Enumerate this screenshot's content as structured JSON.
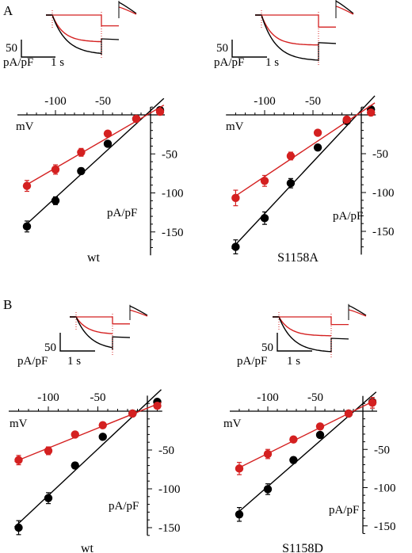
{
  "panels": [
    {
      "label": "A"
    },
    {
      "label": "B"
    }
  ],
  "scale_bar": {
    "value_label": "50",
    "unit_label": "pA/pF",
    "time_label": "1 s"
  },
  "colors": {
    "black_series": "#000000",
    "red_series": "#d42020"
  },
  "chart_data": [
    {
      "type": "scatter",
      "panel": "A",
      "name": "wt",
      "xlabel": "mV",
      "ylabel": "pA/pF",
      "xticks": [
        -100,
        -50
      ],
      "yticks": [
        -50,
        -100,
        -150
      ],
      "xlim": [
        -140,
        15
      ],
      "ylim": [
        -180,
        10
      ],
      "series": [
        {
          "color": "black",
          "x": [
            -130,
            -100,
            -73,
            -45,
            -15,
            10
          ],
          "y": [
            -143,
            -110,
            -72,
            -37,
            -5,
            6
          ],
          "err": [
            7,
            5,
            4,
            3,
            2,
            2
          ]
        },
        {
          "color": "red",
          "x": [
            -130,
            -100,
            -73,
            -45,
            -15,
            10
          ],
          "y": [
            -91,
            -70,
            -48,
            -24,
            -5,
            4
          ],
          "err": [
            7,
            6,
            5,
            3,
            2,
            2
          ]
        }
      ]
    },
    {
      "type": "scatter",
      "panel": "A",
      "name": "S1158A",
      "xlabel": "mV",
      "ylabel": "pA/pF",
      "xticks": [
        -100,
        -50
      ],
      "yticks": [
        -50,
        -100,
        -150
      ],
      "xlim": [
        -140,
        15
      ],
      "ylim": [
        -180,
        10
      ],
      "series": [
        {
          "color": "black",
          "x": [
            -130,
            -100,
            -73,
            -45,
            -15,
            10
          ],
          "y": [
            -170,
            -133,
            -88,
            -42,
            -8,
            7
          ],
          "err": [
            9,
            8,
            6,
            3,
            2,
            2
          ]
        },
        {
          "color": "red",
          "x": [
            -130,
            -100,
            -73,
            -45,
            -15,
            10
          ],
          "y": [
            -107,
            -85,
            -53,
            -23,
            -6,
            3
          ],
          "err": [
            10,
            7,
            5,
            3,
            2,
            2
          ]
        }
      ]
    },
    {
      "type": "scatter",
      "panel": "B",
      "name": "wt",
      "xlabel": "mV",
      "ylabel": "pA/pF",
      "xticks": [
        -100,
        -50
      ],
      "yticks": [
        -50,
        -100,
        -150
      ],
      "xlim": [
        -140,
        15
      ],
      "ylim": [
        -160,
        20
      ],
      "series": [
        {
          "color": "black",
          "x": [
            -130,
            -100,
            -73,
            -45,
            -15,
            10
          ],
          "y": [
            -150,
            -112,
            -70,
            -33,
            -3,
            12
          ],
          "err": [
            9,
            7,
            4,
            3,
            2,
            2
          ]
        },
        {
          "color": "red",
          "x": [
            -130,
            -100,
            -73,
            -45,
            -15,
            10
          ],
          "y": [
            -63,
            -51,
            -30,
            -18,
            -3,
            7
          ],
          "err": [
            6,
            5,
            3,
            2,
            2,
            2
          ]
        }
      ]
    },
    {
      "type": "scatter",
      "panel": "B",
      "name": "S1158D",
      "xlabel": "mV",
      "ylabel": "pA/pF",
      "xticks": [
        -100,
        -50
      ],
      "yticks": [
        -50,
        -100,
        -150
      ],
      "xlim": [
        -140,
        15
      ],
      "ylim": [
        -160,
        20
      ],
      "series": [
        {
          "color": "black",
          "x": [
            -130,
            -100,
            -73,
            -45,
            -15,
            10
          ],
          "y": [
            -135,
            -102,
            -64,
            -31,
            -3,
            12
          ],
          "err": [
            9,
            7,
            4,
            2,
            2,
            2
          ]
        },
        {
          "color": "red",
          "x": [
            -130,
            -100,
            -73,
            -45,
            -15,
            10
          ],
          "y": [
            -75,
            -56,
            -37,
            -20,
            -3,
            11
          ],
          "err": [
            8,
            6,
            3,
            2,
            2,
            7
          ]
        }
      ]
    }
  ]
}
